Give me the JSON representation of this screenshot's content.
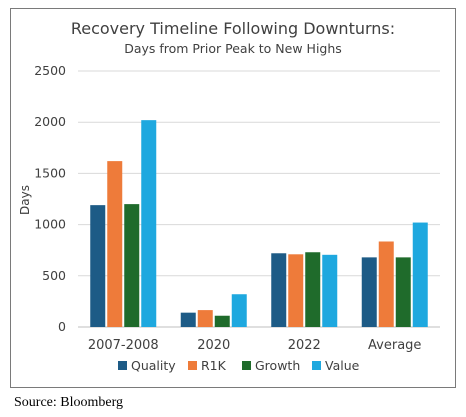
{
  "chart_data": {
    "type": "bar",
    "title": "Recovery Timeline Following Downturns:",
    "subtitle": "Days from Prior Peak to New Highs",
    "xlabel": "",
    "ylabel": "Days",
    "ylim": [
      0,
      2500
    ],
    "yticks": [
      "0",
      "500",
      "1000",
      "1500",
      "2000",
      "2500"
    ],
    "grid": true,
    "legend_position": "bottom",
    "categories": [
      "2007-2008",
      "2020",
      "2022",
      "Average"
    ],
    "series": [
      {
        "name": "Quality",
        "color": "#1d5b86",
        "values": [
          1190,
          140,
          720,
          680
        ]
      },
      {
        "name": "R1K",
        "color": "#ee7b3a",
        "values": [
          1620,
          165,
          710,
          835
        ]
      },
      {
        "name": "Growth",
        "color": "#1f6b2b",
        "values": [
          1200,
          110,
          730,
          680
        ]
      },
      {
        "name": "Value",
        "color": "#1ea8df",
        "values": [
          2020,
          320,
          705,
          1020
        ]
      }
    ]
  },
  "source": "Source: Bloomberg"
}
